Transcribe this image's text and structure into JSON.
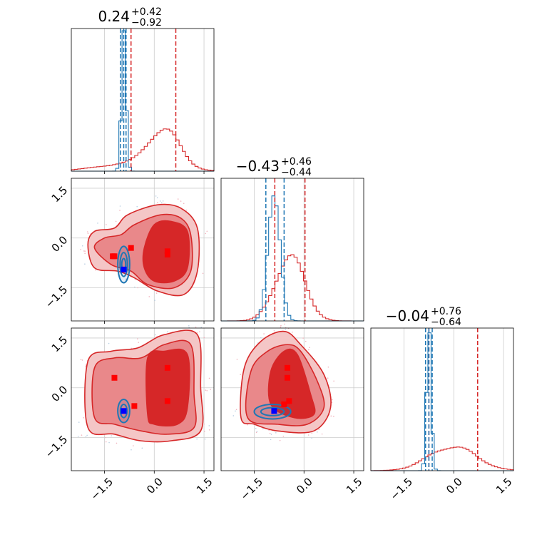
{
  "chart_data": {
    "type": "corner",
    "n_params": 3,
    "colors": {
      "red": "#d62728",
      "blue": "#1f77b4",
      "red_fill_light": "#f4c6c6",
      "red_fill_mid": "#e9888a",
      "red_fill_dark": "#d62728",
      "marker_red": "#ff0000",
      "marker_blue": "#0000ff",
      "grid": "#cccccc"
    },
    "grid": true,
    "range": [
      -2.5,
      1.8
    ],
    "ticks": [
      {
        "value": -1.5,
        "label": "−1.5"
      },
      {
        "value": 0.0,
        "label": "0.0"
      },
      {
        "value": 1.5,
        "label": "1.5"
      }
    ],
    "titles": [
      {
        "main": "0.24",
        "sup": "+0.42",
        "sub": "−0.92"
      },
      {
        "main": "−0.43",
        "sup": "+0.46",
        "sub": "−0.44"
      },
      {
        "main": "−0.04",
        "sup": "+0.76",
        "sub": "−0.64"
      }
    ],
    "marginals": [
      {
        "quantiles": {
          "red": [
            -0.7,
            0.65
          ],
          "blue": [
            -1.02,
            -0.85,
            -0.92
          ]
        },
        "red_hist": {
          "mean": 0.3,
          "sd": 0.45,
          "peak": 0.28,
          "tail": {
            "mean": -0.6,
            "sd": 1.0,
            "weight": 0.06
          }
        },
        "blue_hist": {
          "mean": -0.92,
          "sd": 0.07,
          "peak": 1.0
        }
      },
      {
        "quantiles": {
          "red": [
            -0.88,
            0.03
          ],
          "blue": [
            -1.15,
            -0.6
          ]
        },
        "red_hist": {
          "mean": -0.43,
          "sd": 0.44,
          "peak": 0.48
        },
        "blue_hist": {
          "mean": -0.9,
          "sd": 0.18,
          "peak": 1.0
        }
      },
      {
        "quantiles": {
          "red": [
            -0.75,
            0.72
          ],
          "blue": [
            -0.85,
            -0.65,
            -0.75
          ]
        },
        "red_hist": {
          "mean": -0.04,
          "sd": 0.7,
          "peak": 0.18
        },
        "blue_hist": {
          "mean": -0.75,
          "sd": 0.07,
          "peak": 1.0
        }
      }
    ],
    "joint_panels": [
      {
        "x_param": 0,
        "y_param": 1,
        "red_contours": [
          [
            [
              -2.0,
              -0.2
            ],
            [
              -1.8,
              0.2
            ],
            [
              -1.2,
              0.3
            ],
            [
              -0.8,
              0.7
            ],
            [
              0.1,
              1.0
            ],
            [
              0.8,
              0.9
            ],
            [
              1.3,
              0.3
            ],
            [
              1.3,
              -1.0
            ],
            [
              0.9,
              -1.7
            ],
            [
              0.1,
              -1.6
            ],
            [
              -0.6,
              -1.2
            ],
            [
              -1.1,
              -1.0
            ],
            [
              -1.8,
              -0.9
            ]
          ],
          [
            [
              -1.8,
              -0.3
            ],
            [
              -1.5,
              0.0
            ],
            [
              -1.0,
              0.1
            ],
            [
              -0.6,
              0.4
            ],
            [
              0.2,
              0.7
            ],
            [
              0.8,
              0.6
            ],
            [
              1.1,
              0.1
            ],
            [
              1.1,
              -1.0
            ],
            [
              0.6,
              -1.5
            ],
            [
              -0.2,
              -1.4
            ],
            [
              -0.7,
              -1.0
            ],
            [
              -1.3,
              -0.8
            ]
          ],
          [
            [
              -0.3,
              -0.3
            ],
            [
              0.0,
              0.4
            ],
            [
              0.5,
              0.5
            ],
            [
              1.0,
              0.2
            ],
            [
              1.0,
              -0.9
            ],
            [
              0.6,
              -1.3
            ],
            [
              0.0,
              -1.3
            ],
            [
              -0.3,
              -0.9
            ]
          ]
        ],
        "blue_contours": [
          {
            "cx": -0.92,
            "cy": -0.8,
            "rx": 0.18,
            "ry": 0.55
          },
          {
            "cx": -0.92,
            "cy": -0.8,
            "rx": 0.11,
            "ry": 0.36
          },
          {
            "cx": -0.92,
            "cy": -0.8,
            "rx": 0.06,
            "ry": 0.18
          }
        ],
        "red_markers": [
          [
            -1.2,
            -0.55
          ],
          [
            -0.7,
            -0.3
          ],
          [
            0.4,
            -0.4
          ],
          [
            0.4,
            -0.5
          ],
          [
            -1.25,
            -0.55
          ]
        ],
        "blue_markers": [
          [
            -0.92,
            -0.95
          ]
        ]
      },
      {
        "x_param": 0,
        "y_param": 2,
        "red_contours": [
          [
            [
              -2.0,
              -1.2
            ],
            [
              -2.0,
              0.8
            ],
            [
              -1.3,
              1.1
            ],
            [
              -0.5,
              1.2
            ],
            [
              0.3,
              1.6
            ],
            [
              1.3,
              1.6
            ],
            [
              1.4,
              0.0
            ],
            [
              1.4,
              -1.3
            ],
            [
              0.5,
              -1.6
            ],
            [
              -0.4,
              -1.6
            ],
            [
              -1.2,
              -1.4
            ]
          ],
          [
            [
              -1.8,
              -0.9
            ],
            [
              -1.8,
              0.6
            ],
            [
              -1.2,
              0.9
            ],
            [
              -0.4,
              0.9
            ],
            [
              0.3,
              1.3
            ],
            [
              1.1,
              1.3
            ],
            [
              1.2,
              -0.2
            ],
            [
              1.2,
              -1.2
            ],
            [
              0.4,
              -1.4
            ],
            [
              -0.4,
              -1.3
            ],
            [
              -1.2,
              -1.1
            ]
          ],
          [
            [
              -0.2,
              -0.8
            ],
            [
              -0.2,
              0.9
            ],
            [
              0.3,
              1.1
            ],
            [
              1.0,
              1.0
            ],
            [
              1.0,
              -0.6
            ],
            [
              0.7,
              -1.1
            ],
            [
              0.0,
              -1.1
            ]
          ]
        ],
        "blue_contours": [
          {
            "cx": -0.92,
            "cy": -0.7,
            "rx": 0.18,
            "ry": 0.35
          },
          {
            "cx": -0.92,
            "cy": -0.7,
            "rx": 0.1,
            "ry": 0.2
          }
        ],
        "red_markers": [
          [
            -1.2,
            0.3
          ],
          [
            0.4,
            0.6
          ],
          [
            0.4,
            -0.4
          ],
          [
            -0.6,
            -0.55
          ]
        ],
        "blue_markers": [
          [
            -0.92,
            -0.7
          ]
        ]
      },
      {
        "x_param": 1,
        "y_param": 2,
        "red_contours": [
          [
            [
              -1.9,
              -0.9
            ],
            [
              -1.8,
              0.6
            ],
            [
              -1.3,
              1.4
            ],
            [
              -0.6,
              1.7
            ],
            [
              -0.1,
              1.3
            ],
            [
              0.6,
              0.4
            ],
            [
              0.8,
              -0.6
            ],
            [
              0.3,
              -1.3
            ],
            [
              -0.8,
              -1.3
            ],
            [
              -1.5,
              -1.1
            ]
          ],
          [
            [
              -1.7,
              -0.9
            ],
            [
              -1.6,
              0.5
            ],
            [
              -1.1,
              1.1
            ],
            [
              -0.5,
              1.3
            ],
            [
              -0.1,
              1.1
            ],
            [
              0.4,
              0.2
            ],
            [
              0.6,
              -0.6
            ],
            [
              0.1,
              -1.1
            ],
            [
              -0.8,
              -1.1
            ]
          ],
          [
            [
              -1.0,
              -0.5
            ],
            [
              -1.0,
              0.5
            ],
            [
              -0.6,
              1.1
            ],
            [
              -0.2,
              1.0
            ],
            [
              0.2,
              -0.2
            ],
            [
              0.3,
              -0.8
            ],
            [
              -0.3,
              -0.9
            ]
          ]
        ],
        "blue_contours": [
          {
            "cx": -0.95,
            "cy": -0.72,
            "rx": 0.55,
            "ry": 0.22
          },
          {
            "cx": -0.95,
            "cy": -0.72,
            "rx": 0.35,
            "ry": 0.12
          }
        ],
        "red_markers": [
          [
            -0.5,
            0.6
          ],
          [
            -0.5,
            0.3
          ],
          [
            -0.45,
            -0.4
          ],
          [
            -0.6,
            -0.5
          ]
        ],
        "blue_markers": [
          [
            -0.9,
            -0.7
          ]
        ]
      }
    ]
  }
}
